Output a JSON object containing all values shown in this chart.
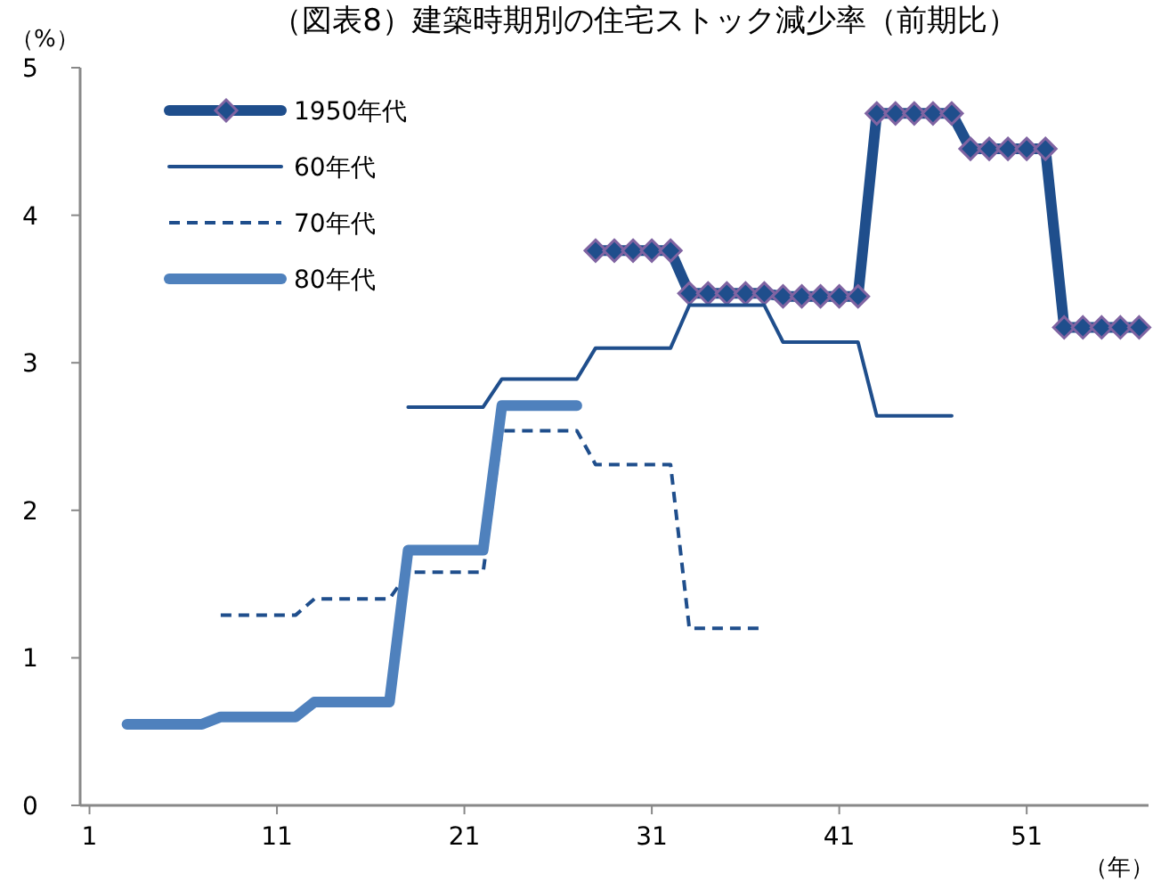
{
  "chart_data": {
    "type": "line",
    "title": "（図表8）建築時期別の住宅ストック減少率（前期比）",
    "ylabel": "（%）",
    "xlabel": "（年）",
    "xlim": [
      0.5,
      57.5
    ],
    "xticks": [
      1,
      11,
      21,
      31,
      41,
      51
    ],
    "ylim": [
      0,
      5
    ],
    "yticks": [
      0,
      1,
      2,
      3,
      4,
      5
    ],
    "grid": false,
    "legend": "top left",
    "series": [
      {
        "name": "1950年代",
        "color": "#1f4e8c",
        "marker": "diamond",
        "line_style": "solid",
        "x": [
          28,
          29,
          30,
          31,
          32,
          33,
          34,
          35,
          36,
          37,
          38,
          39,
          40,
          41,
          42,
          43,
          44,
          45,
          46,
          47,
          48,
          49,
          50,
          51,
          52,
          53,
          54,
          55,
          56,
          57
        ],
        "values": [
          3.76,
          3.76,
          3.76,
          3.76,
          3.76,
          3.47,
          3.47,
          3.47,
          3.47,
          3.47,
          3.45,
          3.45,
          3.45,
          3.45,
          3.45,
          4.69,
          4.69,
          4.69,
          4.69,
          4.69,
          4.45,
          4.45,
          4.45,
          4.45,
          4.45,
          3.24,
          3.24,
          3.24,
          3.24,
          3.24
        ]
      },
      {
        "name": "60年代",
        "color": "#1f4e8c",
        "marker": "none",
        "line_style": "solid",
        "x": [
          18,
          22,
          23,
          27,
          28,
          32,
          33,
          37,
          38,
          42,
          43,
          47
        ],
        "values": [
          2.7,
          2.7,
          2.89,
          2.89,
          3.1,
          3.1,
          3.39,
          3.39,
          3.14,
          3.14,
          2.64,
          2.64
        ]
      },
      {
        "name": "70年代",
        "color": "#1f4e8c",
        "marker": "none",
        "line_style": "dashed",
        "x": [
          8,
          12,
          13,
          17,
          18,
          22,
          23,
          27,
          28,
          32,
          33,
          37
        ],
        "values": [
          1.29,
          1.29,
          1.4,
          1.4,
          1.58,
          1.58,
          2.54,
          2.54,
          2.31,
          2.31,
          1.2,
          1.2
        ]
      },
      {
        "name": "80年代",
        "color": "#4f81bd",
        "marker": "none",
        "line_style": "solid",
        "x": [
          3,
          7,
          8,
          12,
          13,
          17,
          18,
          22,
          23,
          27
        ],
        "values": [
          0.55,
          0.55,
          0.6,
          0.6,
          0.7,
          0.7,
          1.73,
          1.73,
          2.71,
          2.71
        ]
      }
    ]
  }
}
